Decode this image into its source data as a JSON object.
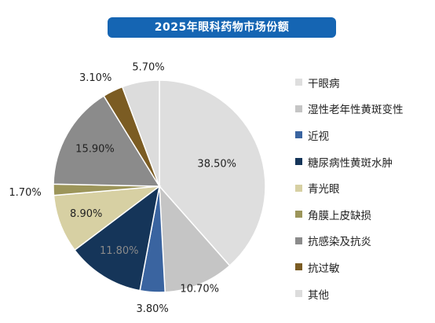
{
  "chart_data": {
    "type": "pie",
    "title": "2025年眼科药物市场份额",
    "legend_position": "right",
    "slices": [
      {
        "name": "干眼病",
        "value": 38.5,
        "label": "38.50%",
        "color": "#dedede"
      },
      {
        "name": "湿性老年性黄斑变性",
        "value": 10.7,
        "label": "10.70%",
        "color": "#c5c5c5"
      },
      {
        "name": "近视",
        "value": 3.8,
        "label": "3.80%",
        "color": "#3a64a0"
      },
      {
        "name": "糖尿病性黄斑水肿",
        "value": 11.8,
        "label": "11.80%",
        "color": "#153559"
      },
      {
        "name": "青光眼",
        "value": 8.9,
        "label": "8.90%",
        "color": "#d7d0a3"
      },
      {
        "name": "角膜上皮缺损",
        "value": 1.7,
        "label": "1.70%",
        "color": "#9c955a"
      },
      {
        "name": "抗感染及抗炎",
        "value": 15.9,
        "label": "15.90%",
        "color": "#8b8b8b"
      },
      {
        "name": "抗过敏",
        "value": 3.1,
        "label": "3.10%",
        "color": "#7b5c23"
      },
      {
        "name": "其他",
        "value": 5.7,
        "label": "5.70%",
        "color": "#dcdcdc"
      }
    ]
  }
}
